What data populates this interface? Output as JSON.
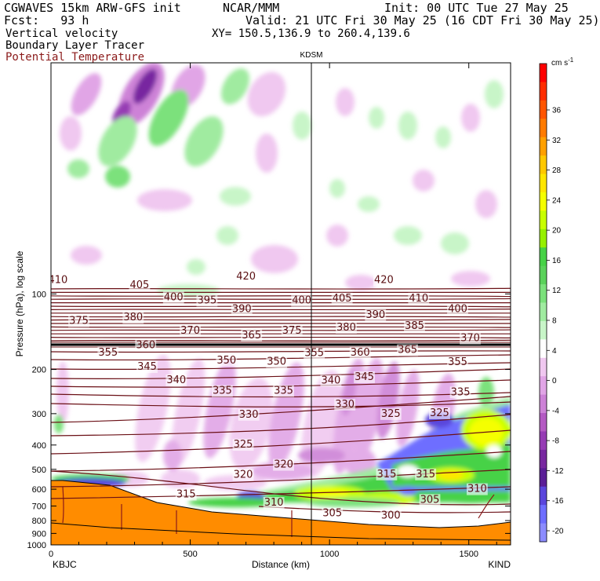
{
  "header": {
    "line1_left": "CGWAVES 15km ARW-GFS init",
    "line1_center": "NCAR/MMM",
    "line1_right": "Init: 00 UTC Tue 27 May 25",
    "line2_left": "Fcst:   93 h",
    "line2_right": "Valid: 21 UTC Fri 30 May 25 (16 CDT Fri 30 May 25)",
    "line3_left": "Vertical velocity",
    "line3_right": "XY= 150.5,136.9 to 260.4,139.6",
    "line4_left": "Boundary Layer Tracer",
    "line5_left": "Potential Temperature"
  },
  "colors": {
    "theta": "#6b1016",
    "terrain": "#ff8c00",
    "text": "#000000"
  },
  "chart_data": {
    "type": "heatmap",
    "xlabel": "Distance (km)",
    "ylabel": "Pressure (hPa), log scale",
    "xlim": [
      0,
      1650
    ],
    "ylim": [
      1000,
      12
    ],
    "y_scale": "log",
    "x_ticks": [
      "0",
      "500",
      "1000",
      "1500"
    ],
    "x_tick_values": [
      0,
      500,
      1000,
      1500
    ],
    "y_ticks": [
      "100",
      "200",
      "300",
      "400",
      "500",
      "600",
      "700",
      "800",
      "900",
      "1000"
    ],
    "y_tick_values": [
      100,
      200,
      300,
      400,
      500,
      600,
      700,
      800,
      900,
      1000
    ],
    "start_station": "KBJC",
    "end_station": "KIND",
    "mid_station": "KDSM",
    "mid_station_x": 930,
    "colorbar": {
      "unit": "cm s",
      "unit_exp": "-1",
      "labels": [
        "36",
        "32",
        "28",
        "24",
        "20",
        "16",
        "12",
        "8",
        "4",
        "0",
        "-4",
        "-8",
        "-12",
        "-16",
        "-20"
      ],
      "colors": [
        "#ff0000",
        "#ff2d00",
        "#ff5500",
        "#ff7b00",
        "#ffa000",
        "#ffc800",
        "#ffe600",
        "#f5ff00",
        "#c8ff00",
        "#96f000",
        "#46d246",
        "#5ad25a",
        "#7be17b",
        "#a0eba0",
        "#c8f5c8",
        "#ffffff",
        "#f0c8f0",
        "#e1a5e6",
        "#cd82d7",
        "#b45ac3",
        "#963cb4",
        "#7828a0",
        "#5a1e96",
        "#5a46dc",
        "#6e6eff",
        "#8c8cff"
      ]
    },
    "theta_labels": [
      {
        "text": "410",
        "x": 25,
        "p": 88
      },
      {
        "text": "405",
        "x": 318,
        "p": 92
      },
      {
        "text": "420",
        "x": 700,
        "p": 85
      },
      {
        "text": "420",
        "x": 1195,
        "p": 88
      },
      {
        "text": "400",
        "x": 440,
        "p": 103
      },
      {
        "text": "395",
        "x": 560,
        "p": 106
      },
      {
        "text": "400",
        "x": 900,
        "p": 106
      },
      {
        "text": "405",
        "x": 1045,
        "p": 104
      },
      {
        "text": "410",
        "x": 1320,
        "p": 104
      },
      {
        "text": "390",
        "x": 685,
        "p": 115
      },
      {
        "text": "390",
        "x": 1165,
        "p": 121
      },
      {
        "text": "400",
        "x": 1460,
        "p": 115
      },
      {
        "text": "375",
        "x": 100,
        "p": 128
      },
      {
        "text": "380",
        "x": 295,
        "p": 124
      },
      {
        "text": "385",
        "x": 1305,
        "p": 134
      },
      {
        "text": "370",
        "x": 500,
        "p": 140
      },
      {
        "text": "365",
        "x": 720,
        "p": 146
      },
      {
        "text": "375",
        "x": 865,
        "p": 140
      },
      {
        "text": "380",
        "x": 1060,
        "p": 136
      },
      {
        "text": "370",
        "x": 1505,
        "p": 150
      },
      {
        "text": "360",
        "x": 340,
        "p": 160
      },
      {
        "text": "355",
        "x": 205,
        "p": 171
      },
      {
        "text": "355",
        "x": 945,
        "p": 172
      },
      {
        "text": "360",
        "x": 1110,
        "p": 171
      },
      {
        "text": "365",
        "x": 1280,
        "p": 167
      },
      {
        "text": "350",
        "x": 630,
        "p": 184
      },
      {
        "text": "350",
        "x": 810,
        "p": 186
      },
      {
        "text": "355",
        "x": 1460,
        "p": 187
      },
      {
        "text": "345",
        "x": 345,
        "p": 195
      },
      {
        "text": "345",
        "x": 1125,
        "p": 214
      },
      {
        "text": "340",
        "x": 450,
        "p": 220
      },
      {
        "text": "340",
        "x": 1005,
        "p": 221
      },
      {
        "text": "335",
        "x": 615,
        "p": 243
      },
      {
        "text": "335",
        "x": 835,
        "p": 243
      },
      {
        "text": "335",
        "x": 1470,
        "p": 246
      },
      {
        "text": "330",
        "x": 1055,
        "p": 275
      },
      {
        "text": "330",
        "x": 710,
        "p": 302
      },
      {
        "text": "325",
        "x": 1220,
        "p": 300
      },
      {
        "text": "325",
        "x": 1395,
        "p": 298
      },
      {
        "text": "325",
        "x": 690,
        "p": 398
      },
      {
        "text": "320",
        "x": 835,
        "p": 478
      },
      {
        "text": "320",
        "x": 690,
        "p": 525
      },
      {
        "text": "315",
        "x": 1205,
        "p": 522
      },
      {
        "text": "315",
        "x": 1345,
        "p": 522
      },
      {
        "text": "310",
        "x": 1530,
        "p": 598
      },
      {
        "text": "315",
        "x": 485,
        "p": 628
      },
      {
        "text": "310",
        "x": 800,
        "p": 678
      },
      {
        "text": "305",
        "x": 1360,
        "p": 660
      },
      {
        "text": "305",
        "x": 1010,
        "p": 748
      },
      {
        "text": "300",
        "x": 1220,
        "p": 762
      }
    ]
  }
}
